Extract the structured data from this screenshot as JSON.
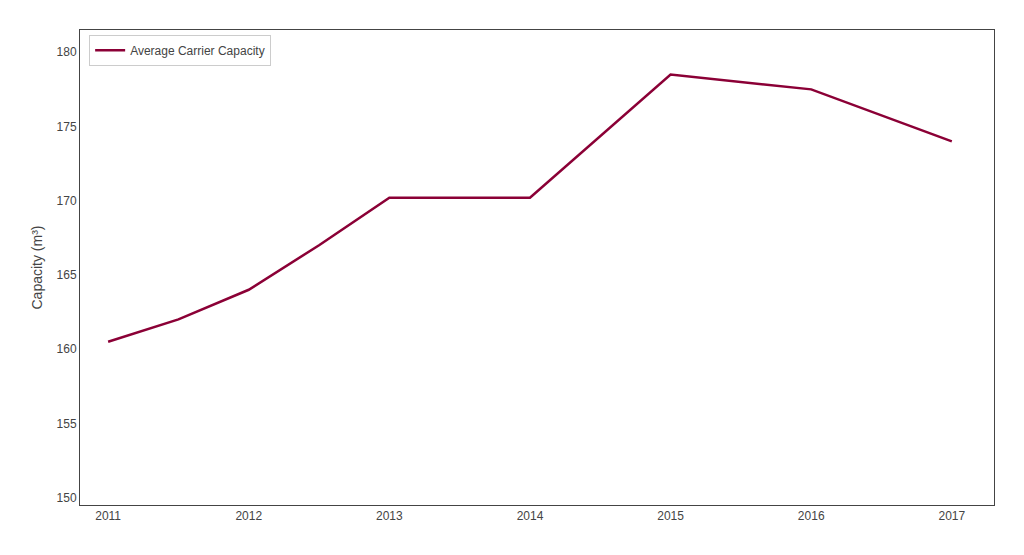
{
  "chart_data": {
    "type": "line",
    "ylabel": "Capacity (m³)",
    "x": [
      2011,
      2011.5,
      2012,
      2012.5,
      2013,
      2014,
      2015,
      2016,
      2017
    ],
    "series": [
      {
        "name": "Average Carrier Capacity",
        "color": "#8B0036",
        "values": [
          160.5,
          162.0,
          164.0,
          167.0,
          170.2,
          170.2,
          178.5,
          177.5,
          174.0
        ]
      }
    ],
    "xlim": [
      2010.8,
      2017.3
    ],
    "ylim": [
      149.5,
      181.5
    ],
    "xticks": [
      2011,
      2012,
      2013,
      2014,
      2015,
      2016,
      2017
    ],
    "yticks": [
      150,
      155,
      160,
      165,
      170,
      175,
      180
    ],
    "grid": false,
    "legend": "upper left"
  }
}
